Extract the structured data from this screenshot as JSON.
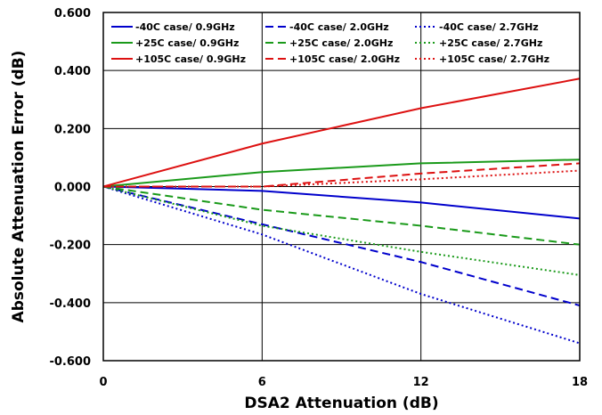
{
  "chart_data": {
    "type": "line",
    "title": "",
    "xlabel": "DSA2 Attenuation (dB)",
    "ylabel": "Absolute Attenuation Error (dB)",
    "xlim": [
      0,
      18
    ],
    "ylim": [
      -0.6,
      0.6
    ],
    "x_ticks": [
      "0",
      "6",
      "12",
      "18"
    ],
    "y_ticks": [
      "0.600",
      "0.400",
      "0.200",
      "0.000",
      "-0.200",
      "-0.400",
      "-0.600"
    ],
    "grid": true,
    "legend_position": "top",
    "x": [
      0,
      6,
      12,
      18
    ],
    "series": [
      {
        "name": "-40C case/ 0.9GHz",
        "color": "#0000cc",
        "dash": "solid",
        "values": [
          0,
          -0.015,
          -0.055,
          -0.11
        ]
      },
      {
        "name": "-40C case/ 2.0GHz",
        "color": "#0000cc",
        "dash": "dashed",
        "values": [
          0,
          -0.13,
          -0.26,
          -0.41
        ]
      },
      {
        "name": "-40C case/ 2.7GHz",
        "color": "#0000cc",
        "dash": "dotted",
        "values": [
          0,
          -0.165,
          -0.37,
          -0.54
        ]
      },
      {
        "name": "+25C case/ 0.9GHz",
        "color": "#1a9a1a",
        "dash": "solid",
        "values": [
          0,
          0.05,
          0.08,
          0.093
        ]
      },
      {
        "name": "+25C case/ 2.0GHz",
        "color": "#1a9a1a",
        "dash": "dashed",
        "values": [
          0,
          -0.08,
          -0.135,
          -0.2
        ]
      },
      {
        "name": "+25C case/ 2.7GHz",
        "color": "#1a9a1a",
        "dash": "dotted",
        "values": [
          0,
          -0.135,
          -0.225,
          -0.305
        ]
      },
      {
        "name": "+105C case/ 0.9GHz",
        "color": "#dd1111",
        "dash": "solid",
        "values": [
          0,
          0.148,
          0.27,
          0.372
        ]
      },
      {
        "name": "+105C case/ 2.0GHz",
        "color": "#dd1111",
        "dash": "dashed",
        "values": [
          0,
          0.0,
          0.045,
          0.08
        ]
      },
      {
        "name": "+105C case/ 2.7GHz",
        "color": "#dd1111",
        "dash": "dotted",
        "values": [
          0,
          0.0,
          0.025,
          0.055
        ]
      }
    ]
  }
}
